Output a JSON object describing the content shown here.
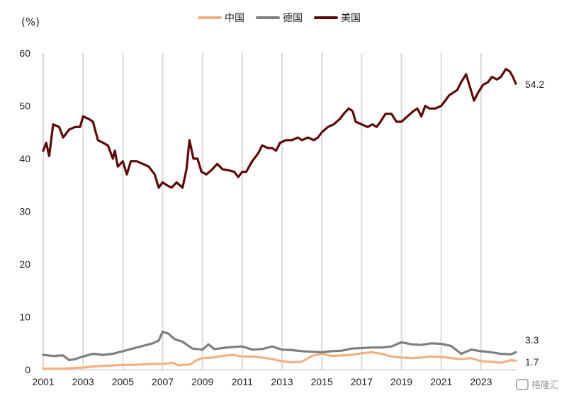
{
  "chart_data": {
    "type": "line",
    "unit_label": "(%)",
    "xlim": [
      2001,
      2024.75
    ],
    "ylim": [
      0,
      60
    ],
    "y_ticks": [
      0,
      10,
      20,
      30,
      40,
      50,
      60
    ],
    "x_ticks": [
      2001,
      2003,
      2005,
      2007,
      2009,
      2011,
      2013,
      2015,
      2017,
      2019,
      2021,
      2023
    ],
    "grid": "vertical",
    "legend_position": "top-center",
    "series": [
      {
        "name": "中国",
        "color": "#f2b183",
        "end_label": "1.7",
        "points": [
          [
            2001,
            0.2
          ],
          [
            2002,
            0.2
          ],
          [
            2003,
            0.4
          ],
          [
            2003.5,
            0.6
          ],
          [
            2004,
            0.7
          ],
          [
            2004.5,
            0.8
          ],
          [
            2005,
            0.9
          ],
          [
            2005.5,
            0.9
          ],
          [
            2006,
            1.0
          ],
          [
            2006.5,
            1.1
          ],
          [
            2007,
            1.1
          ],
          [
            2007.5,
            1.3
          ],
          [
            2007.8,
            0.8
          ],
          [
            2008.4,
            1.0
          ],
          [
            2008.7,
            1.8
          ],
          [
            2009,
            2.2
          ],
          [
            2009.5,
            2.3
          ],
          [
            2010,
            2.6
          ],
          [
            2010.5,
            2.8
          ],
          [
            2011,
            2.5
          ],
          [
            2011.5,
            2.5
          ],
          [
            2012,
            2.3
          ],
          [
            2012.5,
            2.0
          ],
          [
            2013,
            1.6
          ],
          [
            2013.5,
            1.4
          ],
          [
            2014,
            1.5
          ],
          [
            2014.5,
            2.6
          ],
          [
            2015,
            3.0
          ],
          [
            2015.5,
            2.6
          ],
          [
            2016,
            2.7
          ],
          [
            2016.5,
            2.8
          ],
          [
            2017,
            3.1
          ],
          [
            2017.5,
            3.3
          ],
          [
            2018,
            3.0
          ],
          [
            2018.5,
            2.5
          ],
          [
            2019,
            2.3
          ],
          [
            2019.5,
            2.2
          ],
          [
            2020,
            2.3
          ],
          [
            2020.5,
            2.5
          ],
          [
            2021,
            2.4
          ],
          [
            2021.5,
            2.2
          ],
          [
            2022,
            2.0
          ],
          [
            2022.5,
            2.2
          ],
          [
            2023,
            1.6
          ],
          [
            2023.5,
            1.5
          ],
          [
            2024,
            1.3
          ],
          [
            2024.5,
            1.8
          ],
          [
            2024.75,
            1.7
          ]
        ]
      },
      {
        "name": "德国",
        "color": "#7f7f7f",
        "end_label": "3.3",
        "points": [
          [
            2001,
            2.8
          ],
          [
            2001.5,
            2.6
          ],
          [
            2002,
            2.7
          ],
          [
            2002.3,
            1.8
          ],
          [
            2002.6,
            2.0
          ],
          [
            2003,
            2.5
          ],
          [
            2003.5,
            3.0
          ],
          [
            2004,
            2.8
          ],
          [
            2004.5,
            3.0
          ],
          [
            2005,
            3.5
          ],
          [
            2005.5,
            4.0
          ],
          [
            2006,
            4.5
          ],
          [
            2006.5,
            5.0
          ],
          [
            2006.8,
            5.5
          ],
          [
            2007,
            7.2
          ],
          [
            2007.3,
            6.8
          ],
          [
            2007.6,
            5.8
          ],
          [
            2008,
            5.3
          ],
          [
            2008.5,
            4.0
          ],
          [
            2009,
            3.8
          ],
          [
            2009.3,
            4.8
          ],
          [
            2009.6,
            3.9
          ],
          [
            2010,
            4.1
          ],
          [
            2010.5,
            4.3
          ],
          [
            2011,
            4.4
          ],
          [
            2011.5,
            3.8
          ],
          [
            2012,
            3.9
          ],
          [
            2012.5,
            4.4
          ],
          [
            2013,
            3.8
          ],
          [
            2013.5,
            3.7
          ],
          [
            2014,
            3.5
          ],
          [
            2014.5,
            3.4
          ],
          [
            2015,
            3.3
          ],
          [
            2015.5,
            3.5
          ],
          [
            2016,
            3.6
          ],
          [
            2016.5,
            4.0
          ],
          [
            2017,
            4.1
          ],
          [
            2017.5,
            4.2
          ],
          [
            2018,
            4.2
          ],
          [
            2018.5,
            4.4
          ],
          [
            2019,
            5.2
          ],
          [
            2019.5,
            4.8
          ],
          [
            2020,
            4.7
          ],
          [
            2020.5,
            5.0
          ],
          [
            2021,
            4.9
          ],
          [
            2021.5,
            4.5
          ],
          [
            2022,
            3.0
          ],
          [
            2022.5,
            3.8
          ],
          [
            2023,
            3.5
          ],
          [
            2023.5,
            3.3
          ],
          [
            2024,
            3.0
          ],
          [
            2024.5,
            2.9
          ],
          [
            2024.75,
            3.3
          ]
        ]
      },
      {
        "name": "美国",
        "color": "#5c0a0a",
        "end_label": "54.2",
        "points": [
          [
            2001,
            41.5
          ],
          [
            2001.15,
            43
          ],
          [
            2001.3,
            40.5
          ],
          [
            2001.5,
            46.5
          ],
          [
            2001.8,
            46
          ],
          [
            2002,
            44
          ],
          [
            2002.3,
            45.5
          ],
          [
            2002.6,
            46
          ],
          [
            2002.85,
            46
          ],
          [
            2003,
            48
          ],
          [
            2003.3,
            47.5
          ],
          [
            2003.5,
            47
          ],
          [
            2003.75,
            43.5
          ],
          [
            2004,
            43
          ],
          [
            2004.25,
            42.5
          ],
          [
            2004.5,
            40
          ],
          [
            2004.6,
            41.5
          ],
          [
            2004.75,
            38.5
          ],
          [
            2005,
            39.5
          ],
          [
            2005.2,
            37
          ],
          [
            2005.4,
            39.5
          ],
          [
            2005.7,
            39.5
          ],
          [
            2006,
            39
          ],
          [
            2006.3,
            38.5
          ],
          [
            2006.6,
            37
          ],
          [
            2006.8,
            34.5
          ],
          [
            2007,
            35.5
          ],
          [
            2007.2,
            35
          ],
          [
            2007.45,
            34.5
          ],
          [
            2007.7,
            35.5
          ],
          [
            2008,
            34.5
          ],
          [
            2008.2,
            38
          ],
          [
            2008.35,
            43.5
          ],
          [
            2008.55,
            40
          ],
          [
            2008.75,
            40
          ],
          [
            2008.95,
            37.5
          ],
          [
            2009.2,
            37
          ],
          [
            2009.5,
            38
          ],
          [
            2009.75,
            39
          ],
          [
            2010,
            38
          ],
          [
            2010.3,
            37.8
          ],
          [
            2010.6,
            37.5
          ],
          [
            2010.8,
            36.5
          ],
          [
            2011,
            37.5
          ],
          [
            2011.2,
            37.5
          ],
          [
            2011.5,
            39.5
          ],
          [
            2011.8,
            41
          ],
          [
            2012,
            42.5
          ],
          [
            2012.3,
            42
          ],
          [
            2012.5,
            42
          ],
          [
            2012.7,
            41.5
          ],
          [
            2012.9,
            43
          ],
          [
            2013.2,
            43.5
          ],
          [
            2013.5,
            43.5
          ],
          [
            2013.8,
            44
          ],
          [
            2014,
            43.5
          ],
          [
            2014.3,
            44
          ],
          [
            2014.6,
            43.5
          ],
          [
            2014.8,
            44
          ],
          [
            2015,
            45
          ],
          [
            2015.3,
            46
          ],
          [
            2015.6,
            46.5
          ],
          [
            2015.9,
            47.5
          ],
          [
            2016.1,
            48.5
          ],
          [
            2016.35,
            49.5
          ],
          [
            2016.55,
            49
          ],
          [
            2016.7,
            47
          ],
          [
            2017,
            46.5
          ],
          [
            2017.3,
            46
          ],
          [
            2017.55,
            46.5
          ],
          [
            2017.75,
            46
          ],
          [
            2017.95,
            47
          ],
          [
            2018.2,
            48.5
          ],
          [
            2018.5,
            48.5
          ],
          [
            2018.75,
            47
          ],
          [
            2019,
            47
          ],
          [
            2019.3,
            48
          ],
          [
            2019.6,
            49
          ],
          [
            2019.8,
            49.5
          ],
          [
            2020,
            48
          ],
          [
            2020.2,
            50
          ],
          [
            2020.4,
            49.5
          ],
          [
            2020.7,
            49.5
          ],
          [
            2021,
            50
          ],
          [
            2021.2,
            51
          ],
          [
            2021.4,
            52
          ],
          [
            2021.6,
            52.5
          ],
          [
            2021.8,
            53
          ],
          [
            2022,
            54.5
          ],
          [
            2022.25,
            56
          ],
          [
            2022.45,
            53.5
          ],
          [
            2022.65,
            51
          ],
          [
            2022.85,
            52.5
          ],
          [
            2023.1,
            54
          ],
          [
            2023.35,
            54.5
          ],
          [
            2023.55,
            55.5
          ],
          [
            2023.8,
            55
          ],
          [
            2024,
            55.5
          ],
          [
            2024.25,
            57
          ],
          [
            2024.45,
            56.5
          ],
          [
            2024.6,
            55.5
          ],
          [
            2024.75,
            54.2
          ]
        ]
      }
    ]
  },
  "watermark": "格隆汇"
}
